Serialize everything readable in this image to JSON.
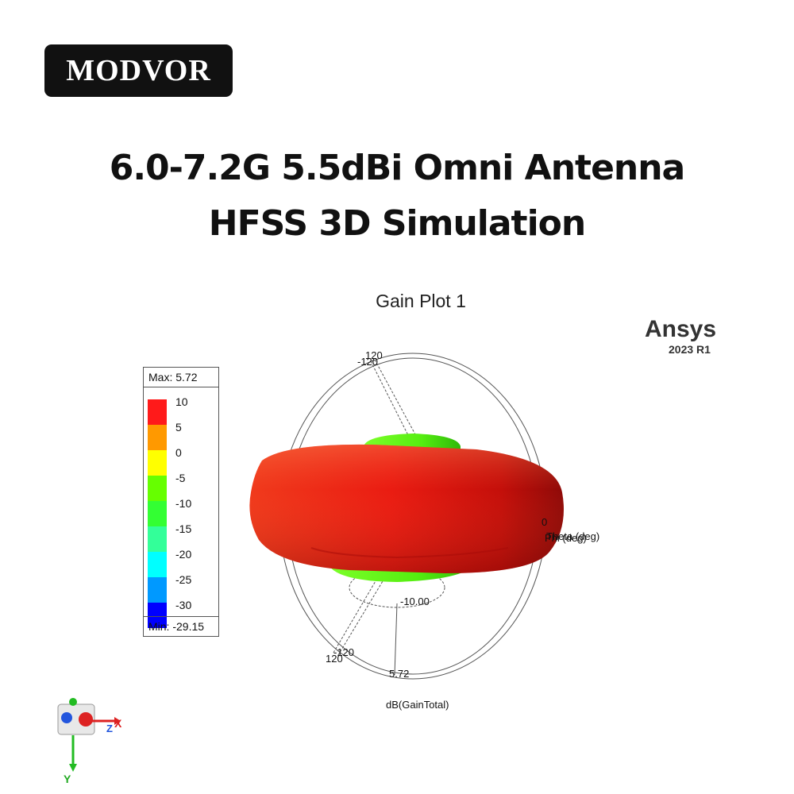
{
  "brand": {
    "name": "MODVOR"
  },
  "headline": {
    "line1": "6.0-7.2G 5.5dBi Omni Antenna",
    "line2": "HFSS 3D Simulation"
  },
  "plot": {
    "title": "Gain Plot 1",
    "vendor": "Ansys",
    "version": "2023 R1",
    "quantity_label": "dB(GainTotal)",
    "phi_label": "Phi (deg)",
    "theta_label": "Theta (deg)",
    "scale_labels": {
      "top_a": "120",
      "top_b": "-120",
      "bottom_a": "-120",
      "bottom_b": "120",
      "right": "0",
      "inner_ring": "-10.00",
      "outer_ring": "5.72"
    }
  },
  "legend": {
    "max_label": "Max: 5.72",
    "min_label": "Min: -29.15",
    "ticks": [
      "10",
      "5",
      "0",
      "-5",
      "-10",
      "-15",
      "-20",
      "-25",
      "-30"
    ],
    "colors": [
      "#ff1a1a",
      "#ff9900",
      "#ffff00",
      "#66ff00",
      "#33ff33",
      "#33ff99",
      "#00ffff",
      "#0099ff",
      "#0000ff"
    ]
  },
  "axes": {
    "x": "X",
    "y": "Y",
    "z": "Z"
  }
}
